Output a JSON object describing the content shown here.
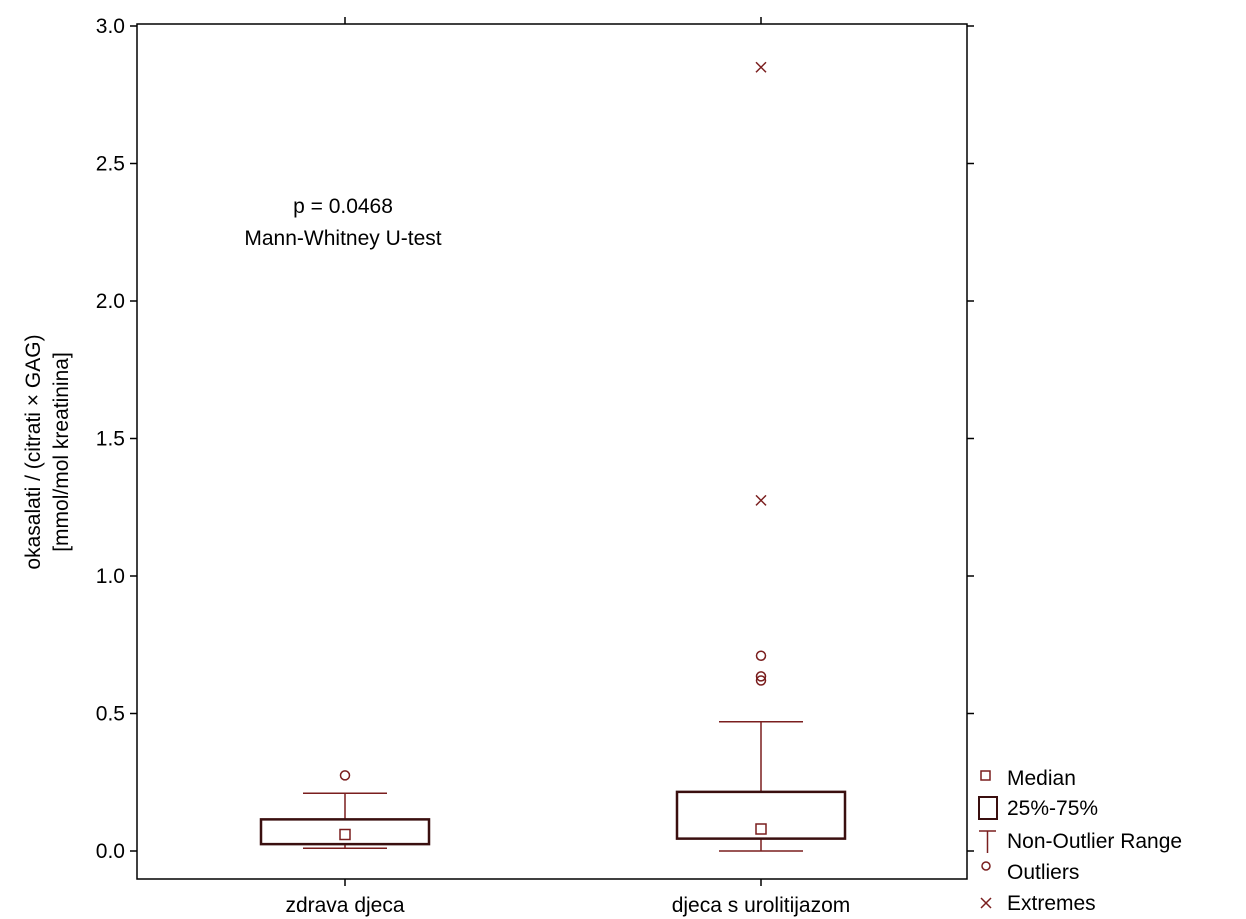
{
  "chart_data": {
    "type": "boxplot",
    "ylabel_line1": "okasalati / (citrati × GAG)",
    "ylabel_line2": "[mmol/mol kreatinina]",
    "ylim": [
      0,
      3.0
    ],
    "yticks": [
      0.0,
      0.5,
      1.0,
      1.5,
      2.0,
      2.5,
      3.0
    ],
    "ytick_labels": [
      "0.0",
      "0.5",
      "1.0",
      "1.5",
      "2.0",
      "2.5",
      "3.0"
    ],
    "annotation": {
      "line1": "p = 0.0468",
      "line2": "Mann-Whitney U-test"
    },
    "categories": [
      "zdrava djeca",
      "djeca s urolitijazom"
    ],
    "groups": [
      {
        "label": "zdrava djeca",
        "median": 0.06,
        "q1": 0.025,
        "q3": 0.115,
        "whisker_low": 0.01,
        "whisker_high": 0.21,
        "outliers": [
          0.275
        ],
        "extremes": []
      },
      {
        "label": "djeca s urolitijazom",
        "median": 0.08,
        "q1": 0.045,
        "q3": 0.215,
        "whisker_low": 0.0,
        "whisker_high": 0.47,
        "outliers": [
          0.62,
          0.635,
          0.71
        ],
        "extremes": [
          1.275,
          2.85
        ]
      }
    ],
    "legend": {
      "placement": "bottom-right",
      "items": [
        "Median",
        "25%-75%",
        "Non-Outlier Range",
        "Outliers",
        "Extremes"
      ]
    },
    "colors": {
      "mark": "#7a1e1e",
      "box": "#3a0f0f",
      "axis": "#000000"
    }
  }
}
